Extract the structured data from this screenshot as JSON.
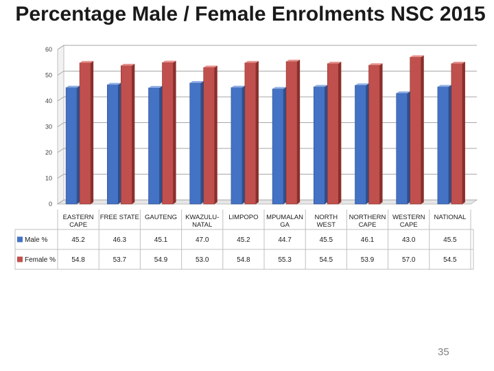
{
  "title": "Percentage Male / Female Enrolments NSC 2015",
  "page_number": "35",
  "colors": {
    "male": "#4472C4",
    "female": "#C0504D"
  },
  "chart_data": {
    "type": "bar",
    "title": "Percentage Male / Female Enrolments NSC 2015",
    "xlabel": "",
    "ylabel": "",
    "ylim": [
      0,
      60
    ],
    "yticks": [
      0,
      10,
      20,
      30,
      40,
      50,
      60
    ],
    "grid": true,
    "legend": "data-table",
    "style": "3d-clustered-column",
    "categories": [
      "EASTERN CAPE",
      "FREE STATE",
      "GAUTENG",
      "KWAZULU-NATAL",
      "LIMPOPO",
      "MPUMALANGA",
      "NORTH WEST",
      "NORTHERN CAPE",
      "WESTERN CAPE",
      "NATIONAL"
    ],
    "category_labels": [
      "EASTERN\nCAPE",
      "FREE STATE",
      "GAUTENG",
      "KWAZULU-\nNATAL",
      "LIMPOPO",
      "MPUMALAN\nGA",
      "NORTH\nWEST",
      "NORTHERN\nCAPE",
      "WESTERN\nCAPE",
      "NATIONAL"
    ],
    "series": [
      {
        "name": "Male %",
        "values": [
          45.2,
          46.3,
          45.1,
          47.0,
          45.2,
          44.7,
          45.5,
          46.1,
          43.0,
          45.5
        ],
        "labels": [
          "45.2",
          "46.3",
          "45.1",
          "47.0",
          "45.2",
          "44.7",
          "45.5",
          "46.1",
          "43.0",
          "45.5"
        ]
      },
      {
        "name": "Female %",
        "values": [
          54.8,
          53.7,
          54.9,
          53.0,
          54.8,
          55.3,
          54.5,
          53.9,
          57.0,
          54.5
        ],
        "labels": [
          "54.8",
          "53.7",
          "54.9",
          "53.0",
          "54.8",
          "55.3",
          "54.5",
          "53.9",
          "57.0",
          "54.5"
        ]
      }
    ]
  }
}
